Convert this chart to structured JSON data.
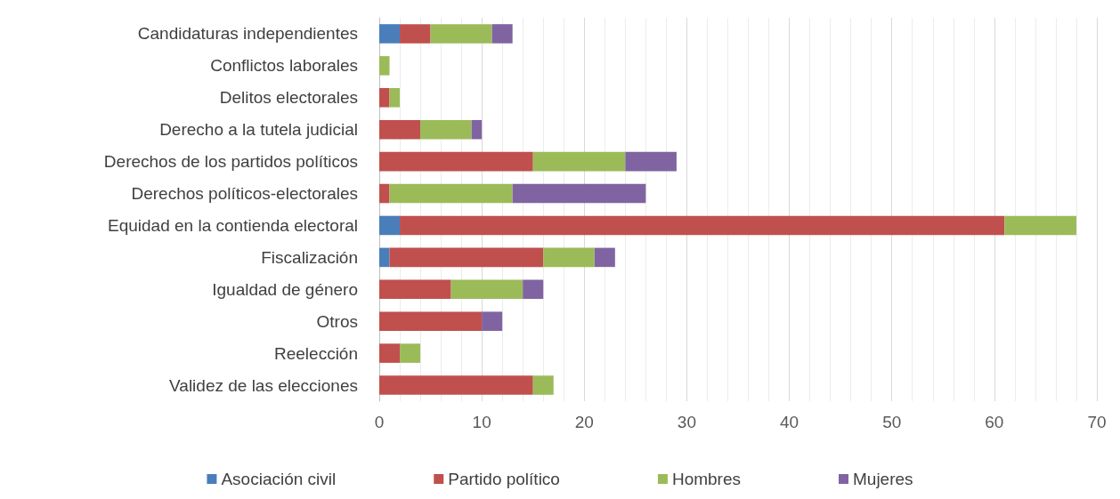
{
  "chart_data": {
    "type": "bar",
    "orientation": "horizontal",
    "stacked": true,
    "categories": [
      "Candidaturas independientes",
      "Conflictos laborales",
      "Delitos electorales",
      "Derecho a la tutela judicial",
      "Derechos de los partidos políticos",
      "Derechos políticos-electorales",
      "Equidad en la contienda electoral",
      "Fiscalización",
      "Igualdad de género",
      "Otros",
      "Reelección",
      "Validez de las elecciones"
    ],
    "series": [
      {
        "name": "Asociación civil",
        "color": "#4a7ebb",
        "values": [
          2,
          null,
          null,
          null,
          null,
          null,
          2,
          1,
          null,
          null,
          null,
          null
        ]
      },
      {
        "name": "Partido político",
        "color": "#c0504d",
        "values": [
          3,
          null,
          1,
          4,
          15,
          1,
          59,
          15,
          7,
          10,
          2,
          15
        ]
      },
      {
        "name": "Hombres",
        "color": "#9bbb59",
        "values": [
          6,
          1,
          1,
          5,
          9,
          12,
          7,
          5,
          7,
          null,
          2,
          2
        ]
      },
      {
        "name": "Mujeres",
        "color": "#8064a2",
        "values": [
          2,
          null,
          null,
          1,
          5,
          13,
          null,
          2,
          2,
          2,
          null,
          null
        ]
      }
    ],
    "xlim": [
      0,
      70
    ],
    "xticks": [
      0,
      10,
      20,
      30,
      40,
      50,
      60,
      70
    ],
    "grid": "x",
    "legend": "bottom"
  }
}
